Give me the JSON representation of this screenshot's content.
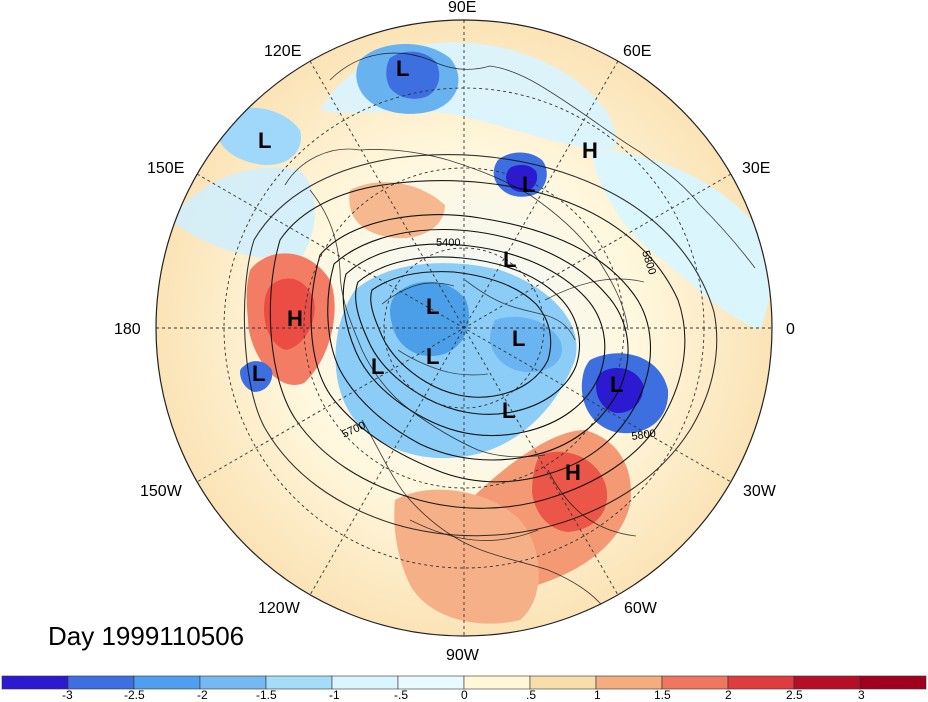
{
  "map": {
    "title": "Day 1999110506",
    "longitude_labels": [
      {
        "id": "90e",
        "text": "90E"
      },
      {
        "id": "120e",
        "text": "120E"
      },
      {
        "id": "60e",
        "text": "60E"
      },
      {
        "id": "150e",
        "text": "150E"
      },
      {
        "id": "30e",
        "text": "30E"
      },
      {
        "id": "180",
        "text": "180"
      },
      {
        "id": "0",
        "text": "0"
      },
      {
        "id": "150w",
        "text": "150W"
      },
      {
        "id": "30w",
        "text": "30W"
      },
      {
        "id": "120w",
        "text": "120W"
      },
      {
        "id": "60w",
        "text": "60W"
      },
      {
        "id": "90w",
        "text": "90W"
      }
    ],
    "contour_labels": [
      {
        "id": "5400",
        "text": "5400"
      },
      {
        "id": "5800-east",
        "text": "5800"
      },
      {
        "id": "5700",
        "text": "5700"
      },
      {
        "id": "5800-atlantic",
        "text": "5800"
      }
    ],
    "pressure_centers": [
      {
        "id": "l-siberia",
        "text": "L"
      },
      {
        "id": "h-europe",
        "text": "H"
      },
      {
        "id": "l-west-asia",
        "text": "L"
      },
      {
        "id": "l-east-asia",
        "text": "L"
      },
      {
        "id": "l-arctic-east",
        "text": "L"
      },
      {
        "id": "l-arctic-center",
        "text": "L"
      },
      {
        "id": "h-north-pacific",
        "text": "H"
      },
      {
        "id": "l-greenland",
        "text": "L"
      },
      {
        "id": "l-beaufort",
        "text": "L"
      },
      {
        "id": "l-canada",
        "text": "L"
      },
      {
        "id": "l-hudson",
        "text": "L"
      },
      {
        "id": "l-pacific-small",
        "text": "L"
      },
      {
        "id": "l-atlantic",
        "text": "L"
      },
      {
        "id": "h-atlantic",
        "text": "H"
      }
    ]
  },
  "colorbar": {
    "ticks": [
      "-3",
      "-2.5",
      "-2",
      "-1.5",
      "-1",
      "-.5",
      "0",
      ".5",
      "1",
      "1.5",
      "2",
      "2.5",
      "3"
    ],
    "colors": [
      "#2b1ad1",
      "#3d6fe0",
      "#4f9ef0",
      "#75b9f2",
      "#a4ddf7",
      "#d9f5ff",
      "#e9fbff",
      "#fff7d6",
      "#f8deaa",
      "#f5ac7f",
      "#ef775f",
      "#df3c3f",
      "#b40f26",
      "#a0001e"
    ]
  }
}
